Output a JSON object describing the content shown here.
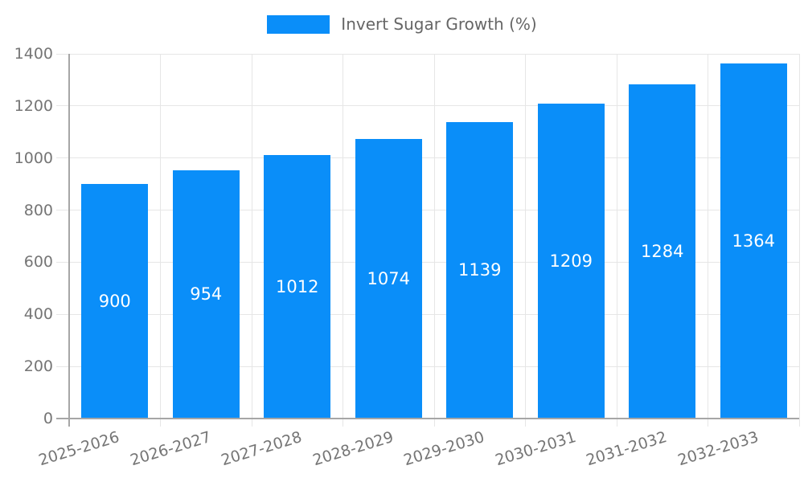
{
  "legend": {
    "label": "Invert Sugar Growth (%)"
  },
  "chart_data": {
    "type": "bar",
    "title": "",
    "xlabel": "",
    "ylabel": "",
    "series_name": "Invert Sugar Growth (%)",
    "categories": [
      "2025-2026",
      "2026-2027",
      "2027-2028",
      "2028-2029",
      "2029-2030",
      "2030-2031",
      "2031-2032",
      "2032-2033"
    ],
    "values": [
      900,
      954,
      1012,
      1074,
      1139,
      1209,
      1284,
      1364
    ],
    "value_labels": [
      "900",
      "954",
      "1012",
      "1074",
      "1139",
      "1209",
      "1284",
      "1364"
    ],
    "y_tick_labels": [
      "0",
      "200",
      "400",
      "600",
      "800",
      "1000",
      "1200",
      "1400"
    ],
    "ylim": [
      0,
      1400
    ],
    "ytick_step": 200,
    "grid": true,
    "legend_position": "top",
    "bar_color": "#0a8ef9",
    "value_label_color": "#ffffff",
    "grid_color": "#e6e6e6",
    "axis_line_color": "#a6a6a6",
    "tick_label_color": "#757575",
    "legend_text_color": "#666666",
    "x_label_rotation_deg": -17
  }
}
